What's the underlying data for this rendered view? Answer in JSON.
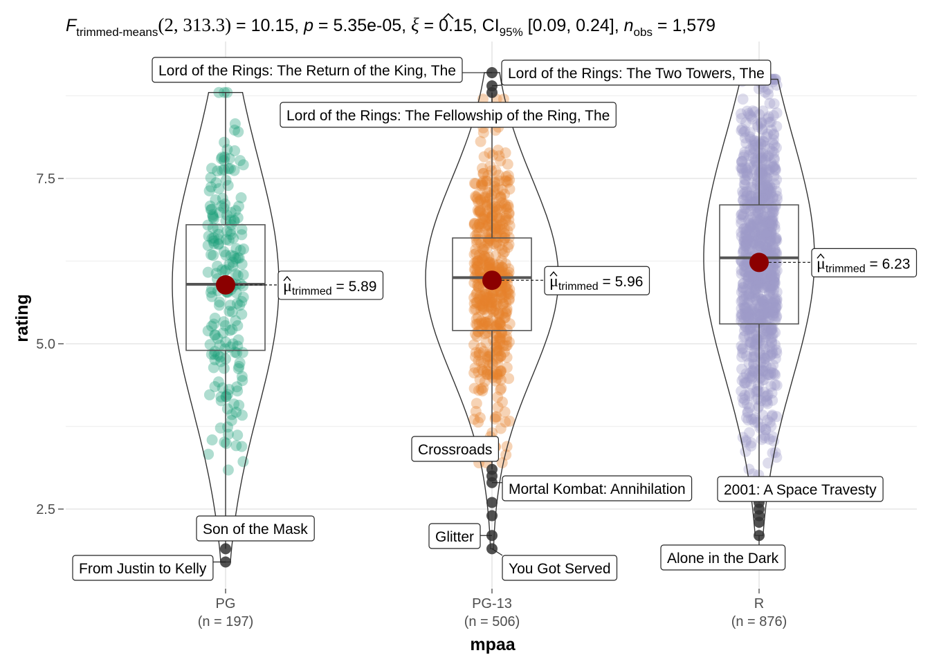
{
  "chart_data": {
    "type": "violin-box-scatter",
    "title": {
      "stat_name": "F",
      "stat_sub": "trimmed-means",
      "stat_args": "(2, 313.3)",
      "stat_val": " = 10.15, ",
      "p_name": "p",
      "p_val": " = 5.35e-05, ",
      "xi_val": " = 0.15, CI",
      "ci_sub": "95%",
      "ci_val": " [0.09, 0.24], ",
      "n_name": "n",
      "n_sub": "obs",
      "n_val": " = 1,579"
    },
    "xlabel": "mpaa",
    "ylabel": "rating",
    "ylim": [
      1.45,
      9.7
    ],
    "yticks": [
      2.5,
      5.0,
      7.5
    ],
    "yticklabels": [
      "2.5",
      "5.0",
      "7.5"
    ],
    "grid": true,
    "mean_label_prefix": "trimmed",
    "groups": [
      {
        "name": "PG",
        "n_label": "(n = 197)",
        "n": 197,
        "color": "#1b9e77",
        "q1": 4.9,
        "median": 5.9,
        "q3": 6.8,
        "whisker_low": 2.3,
        "whisker_high": 8.8,
        "mean": 5.89,
        "mean_label": " = 5.89",
        "ymin": 1.7,
        "ymax": 8.8,
        "outliers": [
          {
            "y": 1.9,
            "label": "Son of the Mask"
          },
          {
            "y": 1.7,
            "label": "From Justin to Kelly"
          }
        ]
      },
      {
        "name": "PG-13",
        "n_label": "(n = 506)",
        "n": 506,
        "color": "#e6822b",
        "q1": 5.2,
        "median": 6.0,
        "q3": 6.6,
        "whisker_low": 3.2,
        "whisker_high": 8.7,
        "mean": 5.96,
        "mean_label": " = 5.96",
        "ymin": 1.9,
        "ymax": 9.1,
        "outliers": [
          {
            "y": 9.1,
            "label": "Lord of the Rings: The Return of the King, The"
          },
          {
            "y": 8.9,
            "label": "Lord of the Rings: The Two Towers, The"
          },
          {
            "y": 8.8,
            "label": "Lord of the Rings: The Fellowship of the Ring, The"
          },
          {
            "y": 3.1,
            "label": "Crossroads"
          },
          {
            "y": 2.9,
            "label": "Mortal Kombat: Annihilation"
          },
          {
            "y": 2.1,
            "label": "Glitter"
          },
          {
            "y": 1.9,
            "label": "You Got Served"
          },
          {
            "y": 3.0,
            "label": ""
          },
          {
            "y": 2.6,
            "label": ""
          },
          {
            "y": 2.4,
            "label": ""
          }
        ]
      },
      {
        "name": "R",
        "n_label": "(n = 876)",
        "n": 876,
        "color": "#9e9ac8",
        "q1": 5.3,
        "median": 6.3,
        "q3": 7.1,
        "whisker_low": 2.7,
        "whisker_high": 9.0,
        "mean": 6.23,
        "mean_label": " = 6.23",
        "ymin": 2.1,
        "ymax": 9.0,
        "outliers": [
          {
            "y": 2.6,
            "label": "2001: A Space Travesty"
          },
          {
            "y": 2.1,
            "label": "Alone in the Dark"
          },
          {
            "y": 2.5,
            "label": ""
          },
          {
            "y": 2.4,
            "label": ""
          },
          {
            "y": 2.3,
            "label": ""
          }
        ]
      }
    ]
  }
}
